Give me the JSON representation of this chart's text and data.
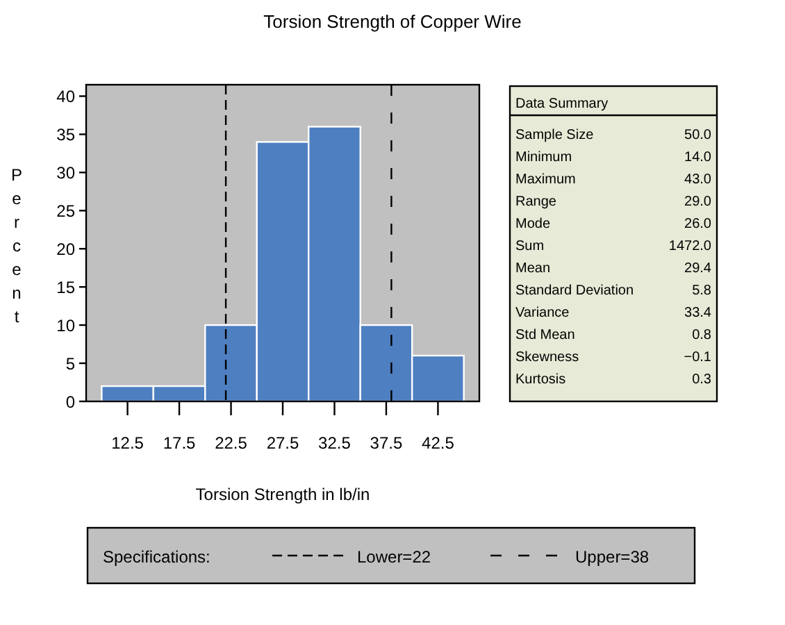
{
  "chart_data": [
    {
      "type": "histogram",
      "title": "Torsion Strength of Copper Wire",
      "xlabel": "Torsion Strength in lb/in",
      "ylabel": "Percent",
      "bins": [
        10,
        15,
        20,
        25,
        30,
        35,
        40,
        45
      ],
      "values": [
        2,
        2,
        10,
        34,
        36,
        10,
        6
      ],
      "color": "#4e7fc1",
      "xlim": [
        8.5,
        46.5
      ],
      "xticks": [
        12.5,
        17.5,
        22.5,
        27.5,
        32.5,
        37.5,
        42.5
      ],
      "ylim": [
        0,
        41.5
      ],
      "yticks": [
        0,
        5,
        10,
        15,
        20,
        25,
        30,
        35,
        40
      ],
      "ref_lines": [
        {
          "axis": "x",
          "value": 22,
          "label": "Lower=22",
          "line_style": "dashed",
          "color": "#000000"
        },
        {
          "axis": "x",
          "value": 38,
          "label": "Upper=38",
          "line_style": "dashed",
          "color": "#000000"
        }
      ],
      "legend": "bottom",
      "legend_title": "Specifications:"
    },
    {
      "type": "other",
      "title": "Data Summary",
      "annotations": [
        "Sample Size",
        "50.0",
        "Minimum",
        "14.0",
        "Maximum",
        "43.0",
        "Range",
        "29.0",
        "Mode",
        "26.0",
        "Sum",
        "1472.0",
        "Mean",
        "29.4",
        "Standard Deviation",
        "5.8",
        "Variance",
        "33.4",
        "Std Mean",
        "0.8",
        "Skewness",
        "−0.1",
        "Kurtosis",
        "0.3"
      ]
    }
  ]
}
